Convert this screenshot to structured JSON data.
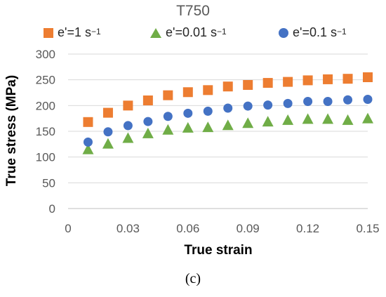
{
  "chart_data": {
    "type": "scatter",
    "title": "T750",
    "xlabel": "True strain",
    "ylabel": "True stress (MPa)",
    "xlim": [
      0,
      0.15
    ],
    "ylim": [
      0,
      300
    ],
    "xticks": [
      "0",
      "0.03",
      "0.06",
      "0.09",
      "0.12",
      "0.15"
    ],
    "yticks": [
      "0",
      "50",
      "100",
      "150",
      "200",
      "250",
      "300"
    ],
    "grid": "horizontal",
    "legend_position": "top",
    "series": [
      {
        "name": "e'=1 s",
        "superscript": "−1",
        "marker": "square",
        "color": "#ED7D31",
        "x": [
          0.01,
          0.02,
          0.03,
          0.04,
          0.05,
          0.06,
          0.07,
          0.08,
          0.09,
          0.1,
          0.11,
          0.12,
          0.13,
          0.14,
          0.15
        ],
        "y": [
          168,
          186,
          200,
          210,
          220,
          226,
          230,
          237,
          240,
          244,
          246,
          249,
          251,
          252,
          255
        ]
      },
      {
        "name": "e'=0.01 s",
        "superscript": "−1",
        "marker": "triangle",
        "color": "#70AD47",
        "x": [
          0.01,
          0.02,
          0.03,
          0.04,
          0.05,
          0.06,
          0.07,
          0.08,
          0.09,
          0.1,
          0.11,
          0.12,
          0.13,
          0.14,
          0.15
        ],
        "y": [
          115,
          126,
          137,
          146,
          153,
          157,
          158,
          162,
          166,
          169,
          172,
          174,
          174,
          172,
          175
        ]
      },
      {
        "name": "e'=0.1 s",
        "superscript": "−1",
        "marker": "circle",
        "color": "#4472C4",
        "x": [
          0.01,
          0.02,
          0.03,
          0.04,
          0.05,
          0.06,
          0.07,
          0.08,
          0.09,
          0.1,
          0.11,
          0.12,
          0.13,
          0.14,
          0.15
        ],
        "y": [
          129,
          149,
          161,
          169,
          179,
          185,
          189,
          195,
          199,
          201,
          204,
          208,
          208,
          211,
          212
        ]
      }
    ]
  },
  "caption": "(c)"
}
